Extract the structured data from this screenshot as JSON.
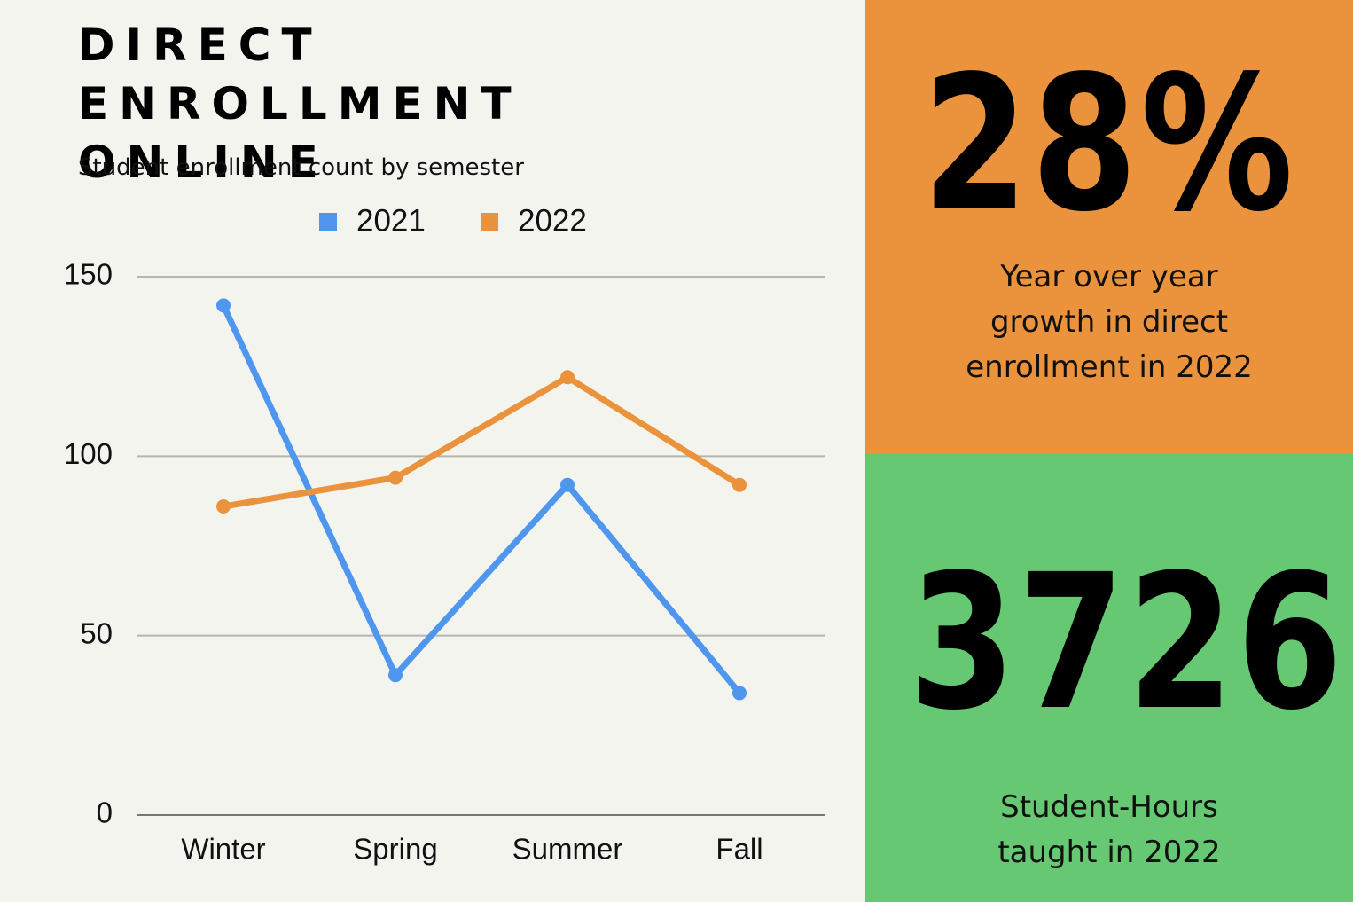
{
  "chart_data": {
    "type": "line",
    "title": "DIRECT ENROLLMENT ONLINE",
    "subtitle": "Student enrollment count by semester",
    "categories": [
      "Winter",
      "Spring",
      "Summer",
      "Fall"
    ],
    "series": [
      {
        "name": "2021",
        "color": "#4f96ee",
        "values": [
          142,
          39,
          92,
          34
        ]
      },
      {
        "name": "2022",
        "color": "#ea923c",
        "values": [
          86,
          94,
          122,
          92
        ]
      }
    ],
    "ylim": [
      0,
      150
    ],
    "yticks": [
      0,
      50,
      100,
      150
    ],
    "grid": true,
    "legend": "top"
  },
  "panels": [
    {
      "stat": "28%",
      "label": "Year over year growth in direct enrollment in 2022",
      "color": "#ea923c"
    },
    {
      "stat": "3726",
      "label": "Student-Hours taught in 2022",
      "color": "#66c872"
    }
  ]
}
